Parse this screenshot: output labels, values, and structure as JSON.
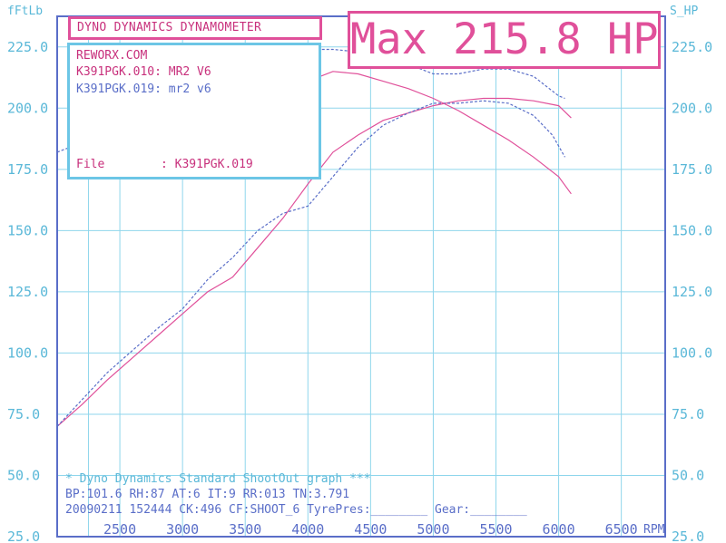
{
  "chart_data": {
    "type": "line",
    "title": "Max 215.8 HP",
    "header": "DYNO DYNAMICS DYNAMOMETER",
    "left_axis_unit": "fFtLb",
    "right_axis_unit": "S_HP",
    "x_axis_unit": "RPM",
    "xlim": [
      2000,
      6850
    ],
    "ylim": [
      25,
      237.5
    ],
    "x_ticks": [
      "2500",
      "3000",
      "3500",
      "4000",
      "4500",
      "5000",
      "5500",
      "6000",
      "6500"
    ],
    "y_ticks_left": [
      "225.0",
      "200.0",
      "175.0",
      "150.0",
      "125.0",
      "100.0",
      "75.0",
      "50.0",
      "25.0"
    ],
    "y_ticks_right": [
      "225.0",
      "200.0",
      "175.0",
      "150.0",
      "125.0",
      "100.0",
      "75.0",
      "50.0",
      "25.0"
    ],
    "grid": true,
    "legend": {
      "site": "REWORX.COM",
      "entries": [
        "K391PGK.010: MR2 V6",
        "K391PGK.019: mr2 v6"
      ],
      "file_label": "File",
      "file_value": ": K391PGK.019"
    },
    "series": [
      {
        "name": "K391PGK.010: MR2 V6",
        "kind": "power",
        "color": "#e0509a",
        "x": [
          2000,
          2200,
          2400,
          2600,
          2800,
          3000,
          3200,
          3400,
          3600,
          3800,
          4000,
          4200,
          4400,
          4600,
          4800,
          5000,
          5200,
          5400,
          5600,
          5800,
          6000,
          6100
        ],
        "y": [
          70,
          79,
          89,
          98,
          107,
          116,
          125,
          131,
          143,
          155,
          169,
          182,
          189,
          195,
          198,
          201,
          203,
          204,
          204,
          203,
          201,
          196
        ]
      },
      {
        "name": "K391PGK.019: mr2 v6",
        "kind": "power",
        "color": "#5a6ec8",
        "x": [
          2000,
          2200,
          2400,
          2600,
          2800,
          3000,
          3200,
          3400,
          3600,
          3800,
          4000,
          4200,
          4400,
          4600,
          4800,
          5000,
          5200,
          5400,
          5600,
          5800,
          5950,
          6050
        ],
        "y": [
          70,
          81,
          92,
          101,
          110,
          118,
          130,
          139,
          150,
          157,
          160,
          172,
          184,
          193,
          198,
          202,
          202,
          203,
          202,
          197,
          189,
          180
        ]
      },
      {
        "name": "K391PGK.010: MR2 V6",
        "kind": "torque",
        "color": "#e0509a",
        "x": [
          4000,
          4200,
          4400,
          4600,
          4800,
          5000,
          5200,
          5400,
          5600,
          5800,
          6000,
          6100
        ],
        "y": [
          211,
          215,
          214,
          211,
          208,
          204,
          199,
          193,
          187,
          180,
          172,
          165
        ]
      },
      {
        "name": "K391PGK.019: mr2 v6",
        "kind": "torque",
        "color": "#5a6ec8",
        "x": [
          2000,
          2200,
          2400,
          2600,
          2800,
          3000,
          3200,
          3400,
          3600,
          3800,
          3950,
          4050,
          4200,
          4400,
          4600,
          4800,
          5000,
          5200,
          5400,
          5600,
          5800,
          6000,
          6050
        ],
        "y": [
          182,
          186,
          191,
          196,
          200,
          202,
          203,
          209,
          215,
          213,
          210,
          224,
          224,
          223,
          221,
          218,
          214,
          214,
          216,
          216,
          213,
          205,
          204
        ]
      }
    ]
  },
  "footer": {
    "line1": "* Dyno Dynamics Standard ShootOut graph ***",
    "line2": "BP:101.6 RH:87 AT:6   IT:9    RR:013 TN:3.791",
    "line3": "20090211 152444 CK:496 CF:SHOOT_6  TyrePres:________ Gear:________"
  }
}
